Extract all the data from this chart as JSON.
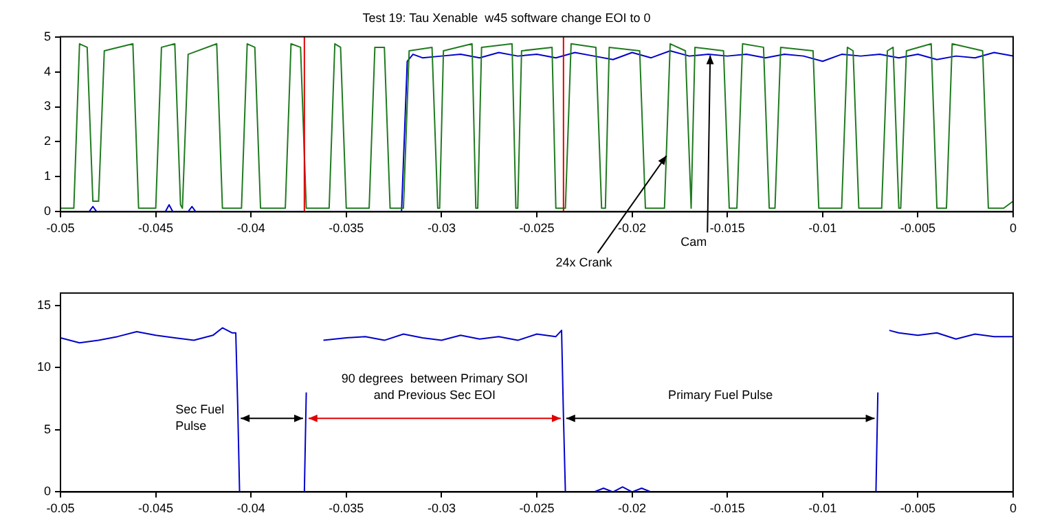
{
  "chart_data": [
    {
      "type": "line",
      "title": "Test 19: Tau Xenable  w45 software change EOI to 0",
      "marker": "none",
      "xlim": [
        -0.05,
        0
      ],
      "xticks": [
        -0.05,
        -0.045,
        -0.04,
        -0.035,
        -0.03,
        -0.025,
        -0.02,
        -0.015,
        -0.01,
        -0.005,
        0
      ],
      "ylim": [
        0,
        5
      ],
      "yticks": [
        0,
        1,
        2,
        3,
        4,
        5
      ],
      "series": [
        {
          "color": "#1f7a1f",
          "x": [
            -0.05,
            -0.0493,
            -0.049,
            -0.0486,
            -0.0483,
            -0.048,
            -0.0477,
            -0.0462,
            -0.0459,
            -0.045,
            -0.0447,
            -0.044,
            -0.0437,
            -0.0436,
            -0.0433,
            -0.0418,
            -0.0415,
            -0.0405,
            -0.0402,
            -0.0398,
            -0.0395,
            -0.0382,
            -0.0379,
            -0.0374,
            -0.0371,
            -0.0359,
            -0.0356,
            -0.0353,
            -0.035,
            -0.0338,
            -0.0335,
            -0.033,
            -0.0327,
            -0.032,
            -0.0317,
            -0.0305,
            -0.0302,
            -0.0301,
            -0.0299,
            -0.0284,
            -0.0282,
            -0.0281,
            -0.0279,
            -0.0263,
            -0.0261,
            -0.026,
            -0.0258,
            -0.0242,
            -0.024,
            -0.0235,
            -0.0232,
            -0.0219,
            -0.0216,
            -0.0214,
            -0.0212,
            -0.0196,
            -0.0193,
            -0.0183,
            -0.018,
            -0.0172,
            -0.0169,
            -0.0169,
            -0.0167,
            -0.0152,
            -0.0149,
            -0.0145,
            -0.0142,
            -0.0131,
            -0.0128,
            -0.0125,
            -0.0122,
            -0.0105,
            -0.0102,
            -0.009,
            -0.0087,
            -0.0084,
            -0.0081,
            -0.0069,
            -0.0066,
            -0.0063,
            -0.006,
            -0.0059,
            -0.0056,
            -0.0043,
            -0.004,
            -0.0035,
            -0.0032,
            -0.0016,
            -0.0013,
            -0.0005,
            0
          ],
          "values": [
            0.1,
            0.1,
            4.8,
            4.7,
            0.3,
            0.3,
            4.6,
            4.8,
            0.1,
            0.1,
            4.7,
            4.8,
            0.2,
            0.1,
            4.5,
            4.8,
            0.1,
            0.1,
            4.8,
            4.7,
            0.1,
            0.1,
            4.8,
            4.7,
            0.1,
            0.1,
            4.8,
            4.7,
            0.1,
            0.1,
            4.7,
            4.7,
            0.1,
            0.1,
            4.6,
            4.7,
            0.1,
            0.1,
            4.6,
            4.8,
            0.1,
            0.1,
            4.7,
            4.8,
            0.1,
            0.1,
            4.6,
            4.7,
            0.1,
            0.1,
            4.8,
            4.7,
            0.1,
            0.1,
            4.7,
            4.6,
            0.1,
            0.1,
            4.8,
            4.6,
            0.1,
            0.1,
            4.7,
            4.6,
            0.1,
            0.1,
            4.8,
            4.7,
            0.1,
            0.1,
            4.7,
            4.6,
            0.1,
            0.1,
            4.7,
            4.6,
            0.1,
            0.1,
            4.6,
            4.7,
            0.1,
            0.1,
            4.6,
            4.8,
            0.1,
            0.1,
            4.8,
            4.6,
            0.1,
            0.1,
            0.3
          ]
        },
        {
          "color": "#0000cc",
          "x": [
            -0.0485,
            -0.0483,
            -0.0481,
            -0.0445,
            -0.0443,
            -0.0441,
            -0.0433,
            -0.0431,
            -0.0429,
            -0.0321,
            -0.0318,
            -0.0315,
            -0.031,
            -0.03,
            -0.029,
            -0.028,
            -0.027,
            -0.026,
            -0.025,
            -0.024,
            -0.023,
            -0.022,
            -0.021,
            -0.02,
            -0.019,
            -0.018,
            -0.017,
            -0.016,
            -0.015,
            -0.014,
            -0.013,
            -0.012,
            -0.011,
            -0.01,
            -0.009,
            -0.008,
            -0.007,
            -0.006,
            -0.005,
            -0.004,
            -0.003,
            -0.002,
            -0.001,
            0
          ],
          "values": [
            0,
            0.15,
            0,
            0,
            0.2,
            0,
            0,
            0.15,
            0,
            0,
            4.3,
            4.5,
            4.4,
            4.45,
            4.5,
            4.4,
            4.55,
            4.45,
            4.5,
            4.4,
            4.55,
            4.45,
            4.35,
            4.55,
            4.4,
            4.6,
            4.45,
            4.5,
            4.45,
            4.5,
            4.4,
            4.5,
            4.45,
            4.3,
            4.5,
            4.45,
            4.5,
            4.4,
            4.5,
            4.35,
            4.45,
            4.4,
            4.55,
            4.45
          ]
        }
      ],
      "ref_lines": [
        {
          "axis": "x",
          "value": -0.0372,
          "color": "#e00000"
        },
        {
          "axis": "x",
          "value": -0.0236,
          "color": "#e00000"
        }
      ],
      "annotations": [
        {
          "text": "24x Crank",
          "x": -0.0182,
          "y": 1.6
        },
        {
          "text": "Cam",
          "x": -0.0159,
          "y": 4.47
        }
      ]
    },
    {
      "type": "line",
      "marker": "none",
      "xlim": [
        -0.05,
        0
      ],
      "xticks": [
        -0.05,
        -0.045,
        -0.04,
        -0.035,
        -0.03,
        -0.025,
        -0.02,
        -0.015,
        -0.01,
        -0.005,
        0
      ],
      "ylim": [
        0,
        16
      ],
      "yticks": [
        0,
        5,
        10,
        15
      ],
      "series": [
        {
          "color": "#0000cc",
          "x": [
            -0.05,
            -0.049,
            -0.048,
            -0.047,
            -0.046,
            -0.045,
            -0.044,
            -0.043,
            -0.042,
            -0.0415,
            -0.041,
            -0.0408,
            -0.0407,
            -0.0406,
            -0.0372,
            -0.0371,
            -0.037,
            -0.0365,
            -0.0362,
            -0.035,
            -0.034,
            -0.033,
            -0.032,
            -0.031,
            -0.03,
            -0.029,
            -0.028,
            -0.027,
            -0.026,
            -0.025,
            -0.024,
            -0.0237,
            -0.0236,
            -0.0235,
            -0.022,
            -0.0215,
            -0.021,
            -0.0205,
            -0.02,
            -0.0195,
            -0.019,
            -0.0072,
            -0.0071,
            -0.007,
            -0.0067,
            -0.0065,
            -0.006,
            -0.005,
            -0.004,
            -0.003,
            -0.002,
            -0.001,
            0
          ],
          "values": [
            12.4,
            12,
            12.2,
            12.5,
            12.9,
            12.6,
            12.4,
            12.2,
            12.6,
            13.2,
            12.8,
            12.8,
            7,
            0,
            0,
            8,
            null,
            null,
            12.2,
            12.4,
            12.5,
            12.2,
            12.7,
            12.4,
            12.2,
            12.6,
            12.3,
            12.5,
            12.2,
            12.7,
            12.5,
            13,
            6,
            0,
            0,
            0.3,
            0,
            0.4,
            0,
            0.3,
            0,
            0,
            8,
            null,
            null,
            13,
            12.8,
            12.6,
            12.8,
            12.3,
            12.7,
            12.5,
            12.5
          ]
        }
      ],
      "annotations": [
        "Sec Fuel Pulse",
        "90 degrees  between Primary SOI and Previous Sec EOI",
        "Primary Fuel Pulse"
      ]
    }
  ]
}
